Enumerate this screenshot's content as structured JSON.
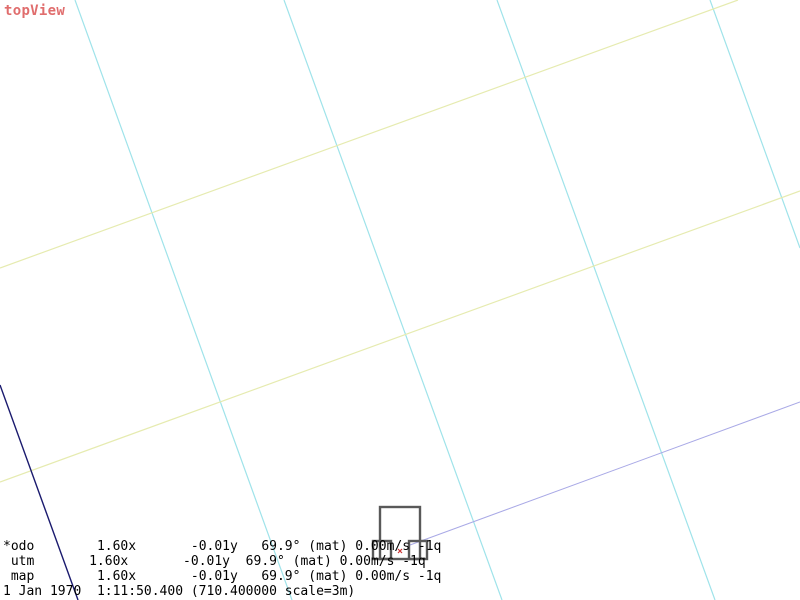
{
  "view": {
    "title": "topView",
    "title_color": "#e06d6d"
  },
  "colors": {
    "background": "#ffffff",
    "grid_minor": "#9fe3ea",
    "grid_major": "#e6ebb0",
    "path_line": "#a9a9e6",
    "boundary_line": "#1a1a6e",
    "vehicle_outline": "#595959",
    "vehicle_marker": "#cc3333"
  },
  "readouts": [
    {
      "label": "*odo",
      "x": "1.60x",
      "y": "-0.01y",
      "heading": "69.9°",
      "mode": "(mat)",
      "speed": "0.00m/s",
      "q": "-1q"
    },
    {
      "label": " utm",
      "x": "1.60x",
      "y": "-0.01y",
      "heading": "69.9°",
      "mode": "(mat)",
      "speed": "0.00m/s",
      "q": "-1q"
    },
    {
      "label": " map",
      "x": "1.60x",
      "y": "-0.01y",
      "heading": "69.9°",
      "mode": "(mat)",
      "speed": "0.00m/s",
      "q": "-1q"
    }
  ],
  "status": {
    "date": "1 Jan 1970",
    "time": "1:11:50.400",
    "elapsed": "(710.400000",
    "scale": "scale=3m)"
  }
}
